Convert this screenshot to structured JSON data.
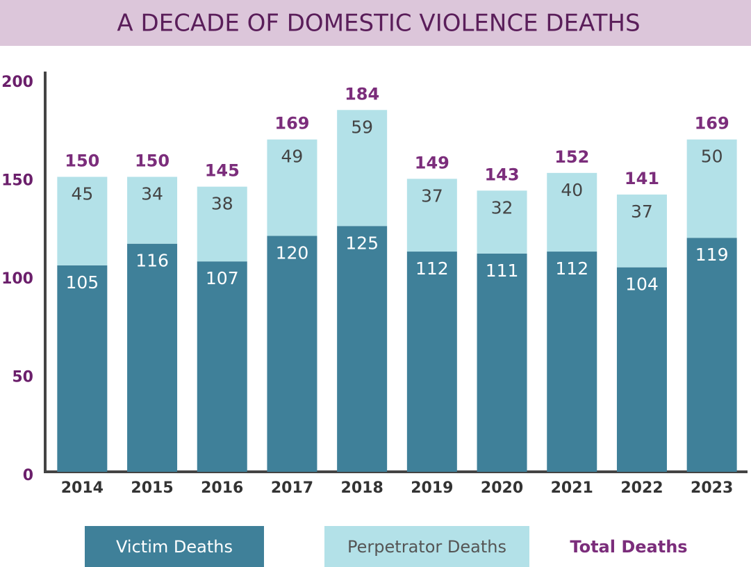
{
  "chart_data": {
    "type": "stacked_bar",
    "title": "A DECADE OF DOMESTIC VIOLENCE DEATHS",
    "categories": [
      "2014",
      "2015",
      "2016",
      "2017",
      "2018",
      "2019",
      "2020",
      "2021",
      "2022",
      "2023"
    ],
    "series": [
      {
        "name": "Victim Deaths",
        "color": "#3f8099",
        "values": [
          105,
          116,
          107,
          120,
          125,
          112,
          111,
          112,
          104,
          119
        ]
      },
      {
        "name": "Perpetrator Deaths",
        "color": "#b3e1e8",
        "values": [
          45,
          34,
          38,
          49,
          59,
          37,
          32,
          40,
          37,
          50
        ]
      }
    ],
    "totals": {
      "name": "Total Deaths",
      "color": "#7b2d7b",
      "values": [
        150,
        150,
        145,
        169,
        184,
        149,
        143,
        152,
        141,
        169
      ]
    },
    "ylim": [
      0,
      200
    ],
    "yticks": [
      0,
      50,
      100,
      150,
      200
    ],
    "grid": false
  }
}
